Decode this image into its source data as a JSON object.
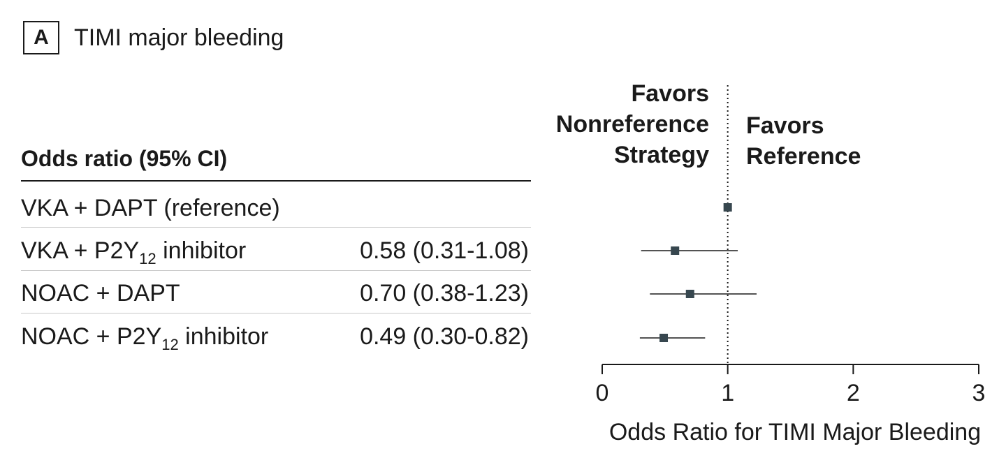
{
  "panel": {
    "letter": "A",
    "title": "TIMI major bleeding"
  },
  "table": {
    "header": "Odds ratio (95% CI)",
    "rows": [
      {
        "label": "VKA + DAPT (reference)",
        "label_sub": "",
        "label_suffix": "",
        "value": ""
      },
      {
        "label": "VKA + P2Y",
        "label_sub": "12",
        "label_suffix": " inhibitor",
        "value": "0.58 (0.31-1.08)"
      },
      {
        "label": "NOAC + DAPT",
        "label_sub": "",
        "label_suffix": "",
        "value": "0.70 (0.38-1.23)"
      },
      {
        "label": "NOAC + P2Y",
        "label_sub": "12",
        "label_suffix": " inhibitor",
        "value": "0.49 (0.30-0.82)"
      }
    ]
  },
  "favors": {
    "left": [
      "Favors",
      "Nonreference",
      "Strategy"
    ],
    "right": [
      "Favors",
      "Reference"
    ]
  },
  "chart_data": {
    "type": "scatter",
    "subtype": "forest",
    "xlabel": "Odds Ratio for TIMI Major Bleeding",
    "xlim": [
      0,
      3
    ],
    "xticks": [
      0,
      1,
      2,
      3
    ],
    "reference_line": 1,
    "marker_color": "#37474f",
    "points": [
      {
        "category": "VKA + DAPT (reference)",
        "estimate": 1.0,
        "lower": null,
        "upper": null
      },
      {
        "category": "VKA + P2Y12 inhibitor",
        "estimate": 0.58,
        "lower": 0.31,
        "upper": 1.08
      },
      {
        "category": "NOAC + DAPT",
        "estimate": 0.7,
        "lower": 0.38,
        "upper": 1.23
      },
      {
        "category": "NOAC + P2Y12 inhibitor",
        "estimate": 0.49,
        "lower": 0.3,
        "upper": 0.82
      }
    ]
  }
}
